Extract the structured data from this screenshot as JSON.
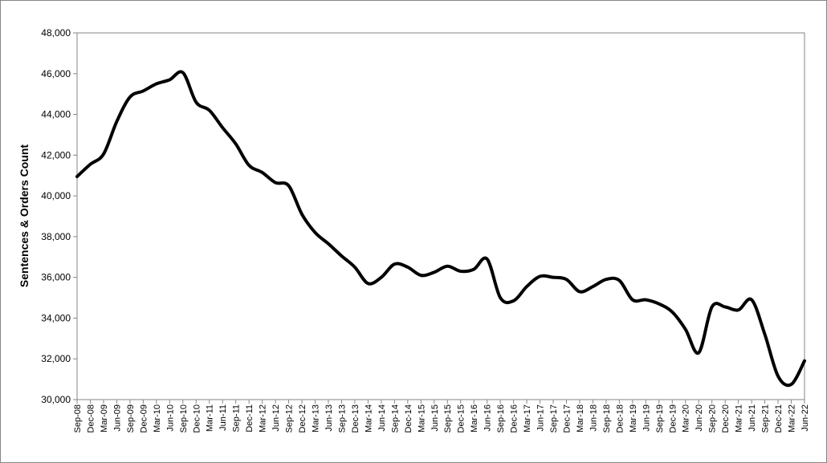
{
  "chart_data": {
    "type": "line",
    "title": "",
    "xlabel": "",
    "ylabel": "Sentences & Orders Count",
    "ylim": [
      30000,
      48000
    ],
    "y_ticks": [
      "30,000",
      "32,000",
      "34,000",
      "36,000",
      "38,000",
      "40,000",
      "42,000",
      "44,000",
      "46,000",
      "48,000"
    ],
    "x_tick_labels": [
      "Sep-08",
      "Dec-08",
      "Mar-09",
      "Jun-09",
      "Sep-09",
      "Dec-09",
      "Mar-10",
      "Jun-10",
      "Sep-10",
      "Dec-10",
      "Mar-11",
      "Jun-11",
      "Sep-11",
      "Dec-11",
      "Mar-12",
      "Jun-12",
      "Sep-12",
      "Dec-12",
      "Mar-13",
      "Jun-13",
      "Sep-13",
      "Dec-13",
      "Mar-14",
      "Jun-14",
      "Sep-14",
      "Dec-14",
      "Mar-15",
      "Jun-15",
      "Sep-15",
      "Dec-15",
      "Mar-16",
      "Jun-16",
      "Sep-16",
      "Dec-16",
      "Mar-17",
      "Jun-17",
      "Sep-17",
      "Dec-17",
      "Mar-18",
      "Jun-18",
      "Sep-18",
      "Dec-18",
      "Mar-19",
      "Jun-19",
      "Sep-19",
      "Dec-19",
      "Mar-20",
      "Jun-20",
      "Sep-20",
      "Dec-20",
      "Mar-21",
      "Jun-21",
      "Sep-21",
      "Dec-21",
      "Mar-22",
      "Jun-22"
    ],
    "grid": false,
    "legend": "none",
    "line_color": "#000000",
    "series": [
      {
        "values": [
          40950,
          41550,
          42050,
          43650,
          44850,
          45150,
          45500,
          45700,
          46050,
          44600,
          44200,
          43350,
          42550,
          41500,
          41150,
          40650,
          40500,
          39100,
          38200,
          37650,
          37050,
          36500,
          35700,
          36000,
          36650,
          36500,
          36100,
          36250,
          36550,
          36300,
          36400,
          36900,
          35000,
          34850,
          35550,
          36050,
          36000,
          35900,
          35300,
          35550,
          35900,
          35850,
          34900,
          34900,
          34700,
          34300,
          33450,
          32300,
          34550,
          34550,
          34400,
          34900,
          33200,
          31150,
          30750,
          31900
        ]
      }
    ]
  }
}
